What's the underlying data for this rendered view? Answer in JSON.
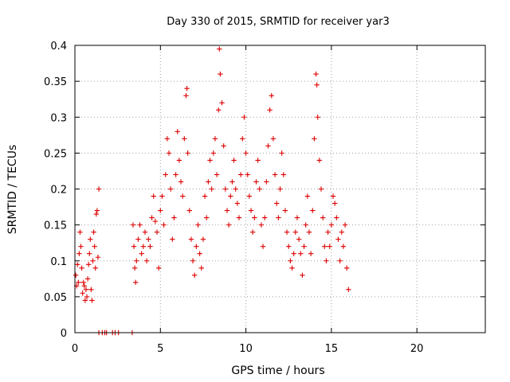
{
  "chart_data": {
    "type": "scatter",
    "title": "Day 330 of 2015, SRMTID for receiver yar3",
    "xlabel": "GPS time / hours",
    "ylabel": "SRMTID / TECUs",
    "xlim": [
      0,
      24
    ],
    "ylim": [
      0,
      0.4
    ],
    "x_ticks": [
      0,
      5,
      10,
      15,
      20
    ],
    "y_ticks": [
      0,
      0.05,
      0.1,
      0.15,
      0.2,
      0.25,
      0.3,
      0.35,
      0.4
    ],
    "x_tick_labels": [
      "0",
      "5",
      "10",
      "15",
      "20"
    ],
    "y_tick_labels": [
      "0",
      "0.05",
      "0.1",
      "0.15",
      "0.2",
      "0.25",
      "0.3",
      "0.35",
      "0.4"
    ],
    "grid": true,
    "marker": "plus",
    "series_color": "#dd0000",
    "series": [
      {
        "name": "SRMTID",
        "points": [
          [
            0.05,
            0.08
          ],
          [
            0.1,
            0.065
          ],
          [
            0.15,
            0.095
          ],
          [
            0.2,
            0.07
          ],
          [
            0.25,
            0.11
          ],
          [
            0.3,
            0.14
          ],
          [
            0.35,
            0.12
          ],
          [
            0.4,
            0.09
          ],
          [
            0.45,
            0.055
          ],
          [
            0.5,
            0.07
          ],
          [
            0.55,
            0.065
          ],
          [
            0.6,
            0.045
          ],
          [
            0.65,
            0.06
          ],
          [
            0.7,
            0.05
          ],
          [
            0.75,
            0.075
          ],
          [
            0.8,
            0.095
          ],
          [
            0.85,
            0.11
          ],
          [
            0.9,
            0.13
          ],
          [
            0.95,
            0.06
          ],
          [
            1.0,
            0.045
          ],
          [
            1.05,
            0.1
          ],
          [
            1.1,
            0.14
          ],
          [
            1.15,
            0.12
          ],
          [
            1.2,
            0.09
          ],
          [
            1.25,
            0.165
          ],
          [
            1.3,
            0.17
          ],
          [
            1.35,
            0.105
          ],
          [
            1.4,
            0.2
          ],
          [
            1.4,
            0.0
          ],
          [
            1.6,
            0.0
          ],
          [
            1.75,
            0.0
          ],
          [
            1.85,
            0.0
          ],
          [
            2.2,
            0.0
          ],
          [
            2.35,
            0.0
          ],
          [
            2.55,
            0.0
          ],
          [
            3.35,
            0.0
          ],
          [
            3.4,
            0.15
          ],
          [
            3.45,
            0.12
          ],
          [
            3.5,
            0.09
          ],
          [
            3.55,
            0.07
          ],
          [
            3.6,
            0.1
          ],
          [
            3.7,
            0.13
          ],
          [
            3.8,
            0.15
          ],
          [
            3.9,
            0.11
          ],
          [
            4.0,
            0.12
          ],
          [
            4.1,
            0.14
          ],
          [
            4.2,
            0.1
          ],
          [
            4.3,
            0.13
          ],
          [
            4.4,
            0.12
          ],
          [
            4.5,
            0.16
          ],
          [
            4.6,
            0.19
          ],
          [
            4.7,
            0.155
          ],
          [
            4.8,
            0.14
          ],
          [
            4.9,
            0.09
          ],
          [
            5.0,
            0.17
          ],
          [
            5.1,
            0.19
          ],
          [
            5.2,
            0.15
          ],
          [
            5.3,
            0.22
          ],
          [
            5.4,
            0.27
          ],
          [
            5.5,
            0.25
          ],
          [
            5.6,
            0.2
          ],
          [
            5.7,
            0.13
          ],
          [
            5.8,
            0.16
          ],
          [
            5.9,
            0.22
          ],
          [
            6.0,
            0.28
          ],
          [
            6.1,
            0.24
          ],
          [
            6.2,
            0.21
          ],
          [
            6.3,
            0.19
          ],
          [
            6.4,
            0.27
          ],
          [
            6.5,
            0.33
          ],
          [
            6.55,
            0.34
          ],
          [
            6.6,
            0.25
          ],
          [
            6.7,
            0.17
          ],
          [
            6.8,
            0.13
          ],
          [
            6.9,
            0.1
          ],
          [
            7.0,
            0.08
          ],
          [
            7.1,
            0.12
          ],
          [
            7.2,
            0.15
          ],
          [
            7.3,
            0.11
          ],
          [
            7.4,
            0.09
          ],
          [
            7.5,
            0.13
          ],
          [
            7.6,
            0.19
          ],
          [
            7.7,
            0.16
          ],
          [
            7.8,
            0.21
          ],
          [
            7.9,
            0.24
          ],
          [
            8.0,
            0.2
          ],
          [
            8.1,
            0.25
          ],
          [
            8.2,
            0.27
          ],
          [
            8.3,
            0.22
          ],
          [
            8.4,
            0.31
          ],
          [
            8.45,
            0.395
          ],
          [
            8.5,
            0.36
          ],
          [
            8.6,
            0.32
          ],
          [
            8.7,
            0.26
          ],
          [
            8.8,
            0.2
          ],
          [
            8.9,
            0.17
          ],
          [
            9.0,
            0.15
          ],
          [
            9.1,
            0.19
          ],
          [
            9.2,
            0.21
          ],
          [
            9.3,
            0.24
          ],
          [
            9.4,
            0.2
          ],
          [
            9.5,
            0.18
          ],
          [
            9.6,
            0.16
          ],
          [
            9.7,
            0.22
          ],
          [
            9.8,
            0.27
          ],
          [
            9.9,
            0.3
          ],
          [
            10.0,
            0.25
          ],
          [
            10.1,
            0.22
          ],
          [
            10.2,
            0.19
          ],
          [
            10.3,
            0.17
          ],
          [
            10.4,
            0.14
          ],
          [
            10.5,
            0.16
          ],
          [
            10.6,
            0.21
          ],
          [
            10.7,
            0.24
          ],
          [
            10.8,
            0.2
          ],
          [
            10.9,
            0.15
          ],
          [
            11.0,
            0.12
          ],
          [
            11.1,
            0.16
          ],
          [
            11.2,
            0.21
          ],
          [
            11.3,
            0.26
          ],
          [
            11.4,
            0.31
          ],
          [
            11.5,
            0.33
          ],
          [
            11.6,
            0.27
          ],
          [
            11.7,
            0.22
          ],
          [
            11.8,
            0.18
          ],
          [
            11.9,
            0.16
          ],
          [
            12.0,
            0.2
          ],
          [
            12.1,
            0.25
          ],
          [
            12.2,
            0.22
          ],
          [
            12.3,
            0.17
          ],
          [
            12.4,
            0.14
          ],
          [
            12.5,
            0.12
          ],
          [
            12.6,
            0.1
          ],
          [
            12.7,
            0.09
          ],
          [
            12.8,
            0.11
          ],
          [
            12.9,
            0.14
          ],
          [
            13.0,
            0.16
          ],
          [
            13.1,
            0.13
          ],
          [
            13.2,
            0.11
          ],
          [
            13.3,
            0.08
          ],
          [
            13.4,
            0.12
          ],
          [
            13.5,
            0.15
          ],
          [
            13.6,
            0.19
          ],
          [
            13.7,
            0.14
          ],
          [
            13.8,
            0.11
          ],
          [
            13.9,
            0.17
          ],
          [
            14.0,
            0.27
          ],
          [
            14.1,
            0.36
          ],
          [
            14.15,
            0.345
          ],
          [
            14.2,
            0.3
          ],
          [
            14.3,
            0.24
          ],
          [
            14.4,
            0.2
          ],
          [
            14.5,
            0.16
          ],
          [
            14.6,
            0.12
          ],
          [
            14.7,
            0.1
          ],
          [
            14.8,
            0.14
          ],
          [
            14.9,
            0.12
          ],
          [
            15.0,
            0.15
          ],
          [
            15.1,
            0.19
          ],
          [
            15.2,
            0.18
          ],
          [
            15.3,
            0.16
          ],
          [
            15.4,
            0.13
          ],
          [
            15.5,
            0.1
          ],
          [
            15.6,
            0.14
          ],
          [
            15.7,
            0.12
          ],
          [
            15.8,
            0.15
          ],
          [
            15.9,
            0.09
          ],
          [
            16.0,
            0.06
          ]
        ]
      }
    ]
  }
}
